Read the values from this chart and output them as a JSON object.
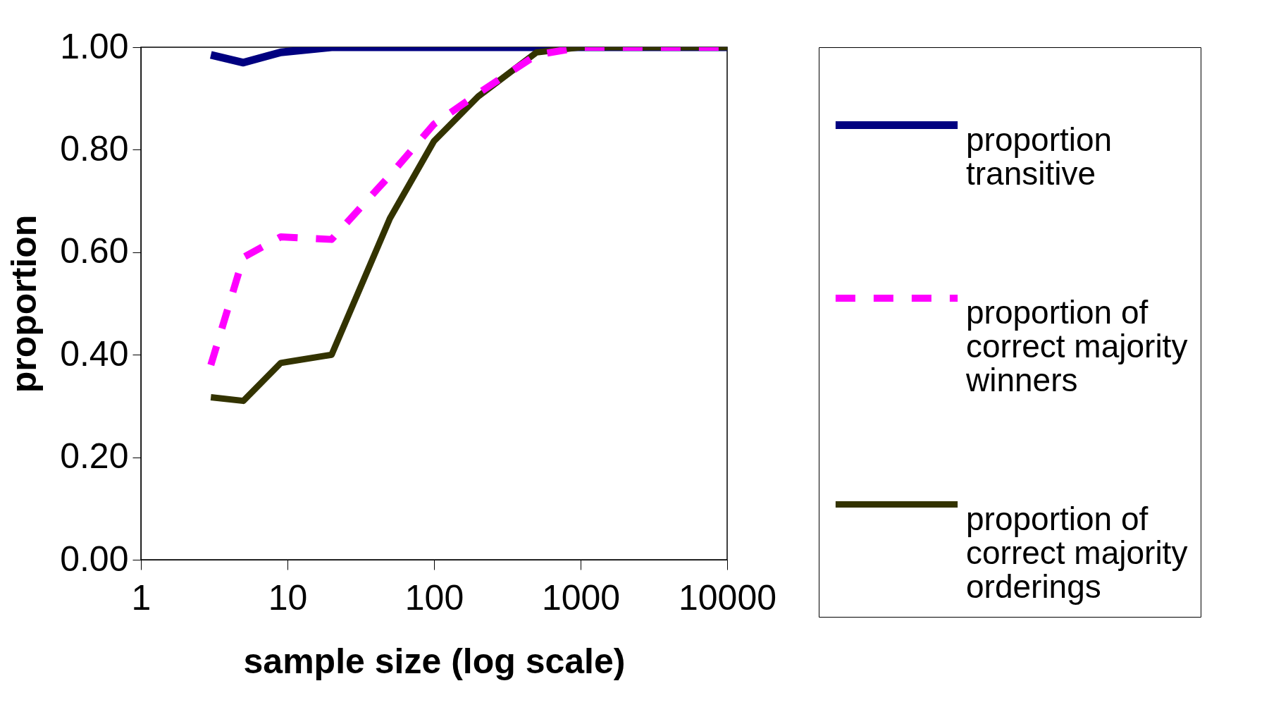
{
  "chart_data": {
    "type": "line",
    "xlabel": "sample size (log scale)",
    "ylabel": "proportion",
    "log": "x",
    "x": [
      3,
      5,
      9,
      20,
      50,
      100,
      200,
      500,
      1000,
      2000,
      5000,
      10000
    ],
    "series": [
      {
        "name": "proportion transitive",
        "color": "#000080",
        "line_style": "solid",
        "values": [
          0.985,
          0.97,
          0.99,
          1.0,
          1.0,
          1.0,
          1.0,
          1.0,
          1.0,
          1.0,
          1.0,
          1.0
        ]
      },
      {
        "name": "proportion of correct majority winners",
        "color": "#ff00ff",
        "line_style": "dashed",
        "values": [
          0.38,
          0.59,
          0.63,
          0.625,
          0.75,
          0.85,
          0.91,
          0.985,
          1.0,
          1.0,
          1.0,
          1.0
        ]
      },
      {
        "name": "proportion of correct majority orderings",
        "color": "#333300",
        "line_style": "solid",
        "values": [
          0.317,
          0.31,
          0.384,
          0.4,
          0.666,
          0.817,
          0.904,
          0.99,
          1.0,
          1.0,
          1.0,
          1.0
        ]
      }
    ],
    "xlim": [
      1,
      10000
    ],
    "xticks": [
      1,
      10,
      100,
      1000,
      10000
    ],
    "ylim": [
      0,
      1
    ],
    "yticks": [
      {
        "value": 0,
        "label": "0.00"
      },
      {
        "value": 0.2,
        "label": "0.20"
      },
      {
        "value": 0.4,
        "label": "0.40"
      },
      {
        "value": 0.6,
        "label": "0.60"
      },
      {
        "value": 0.8,
        "label": "0.80"
      },
      {
        "value": 1,
        "label": "1.00"
      }
    ],
    "grid": false,
    "legend": "right",
    "marker": "none"
  }
}
